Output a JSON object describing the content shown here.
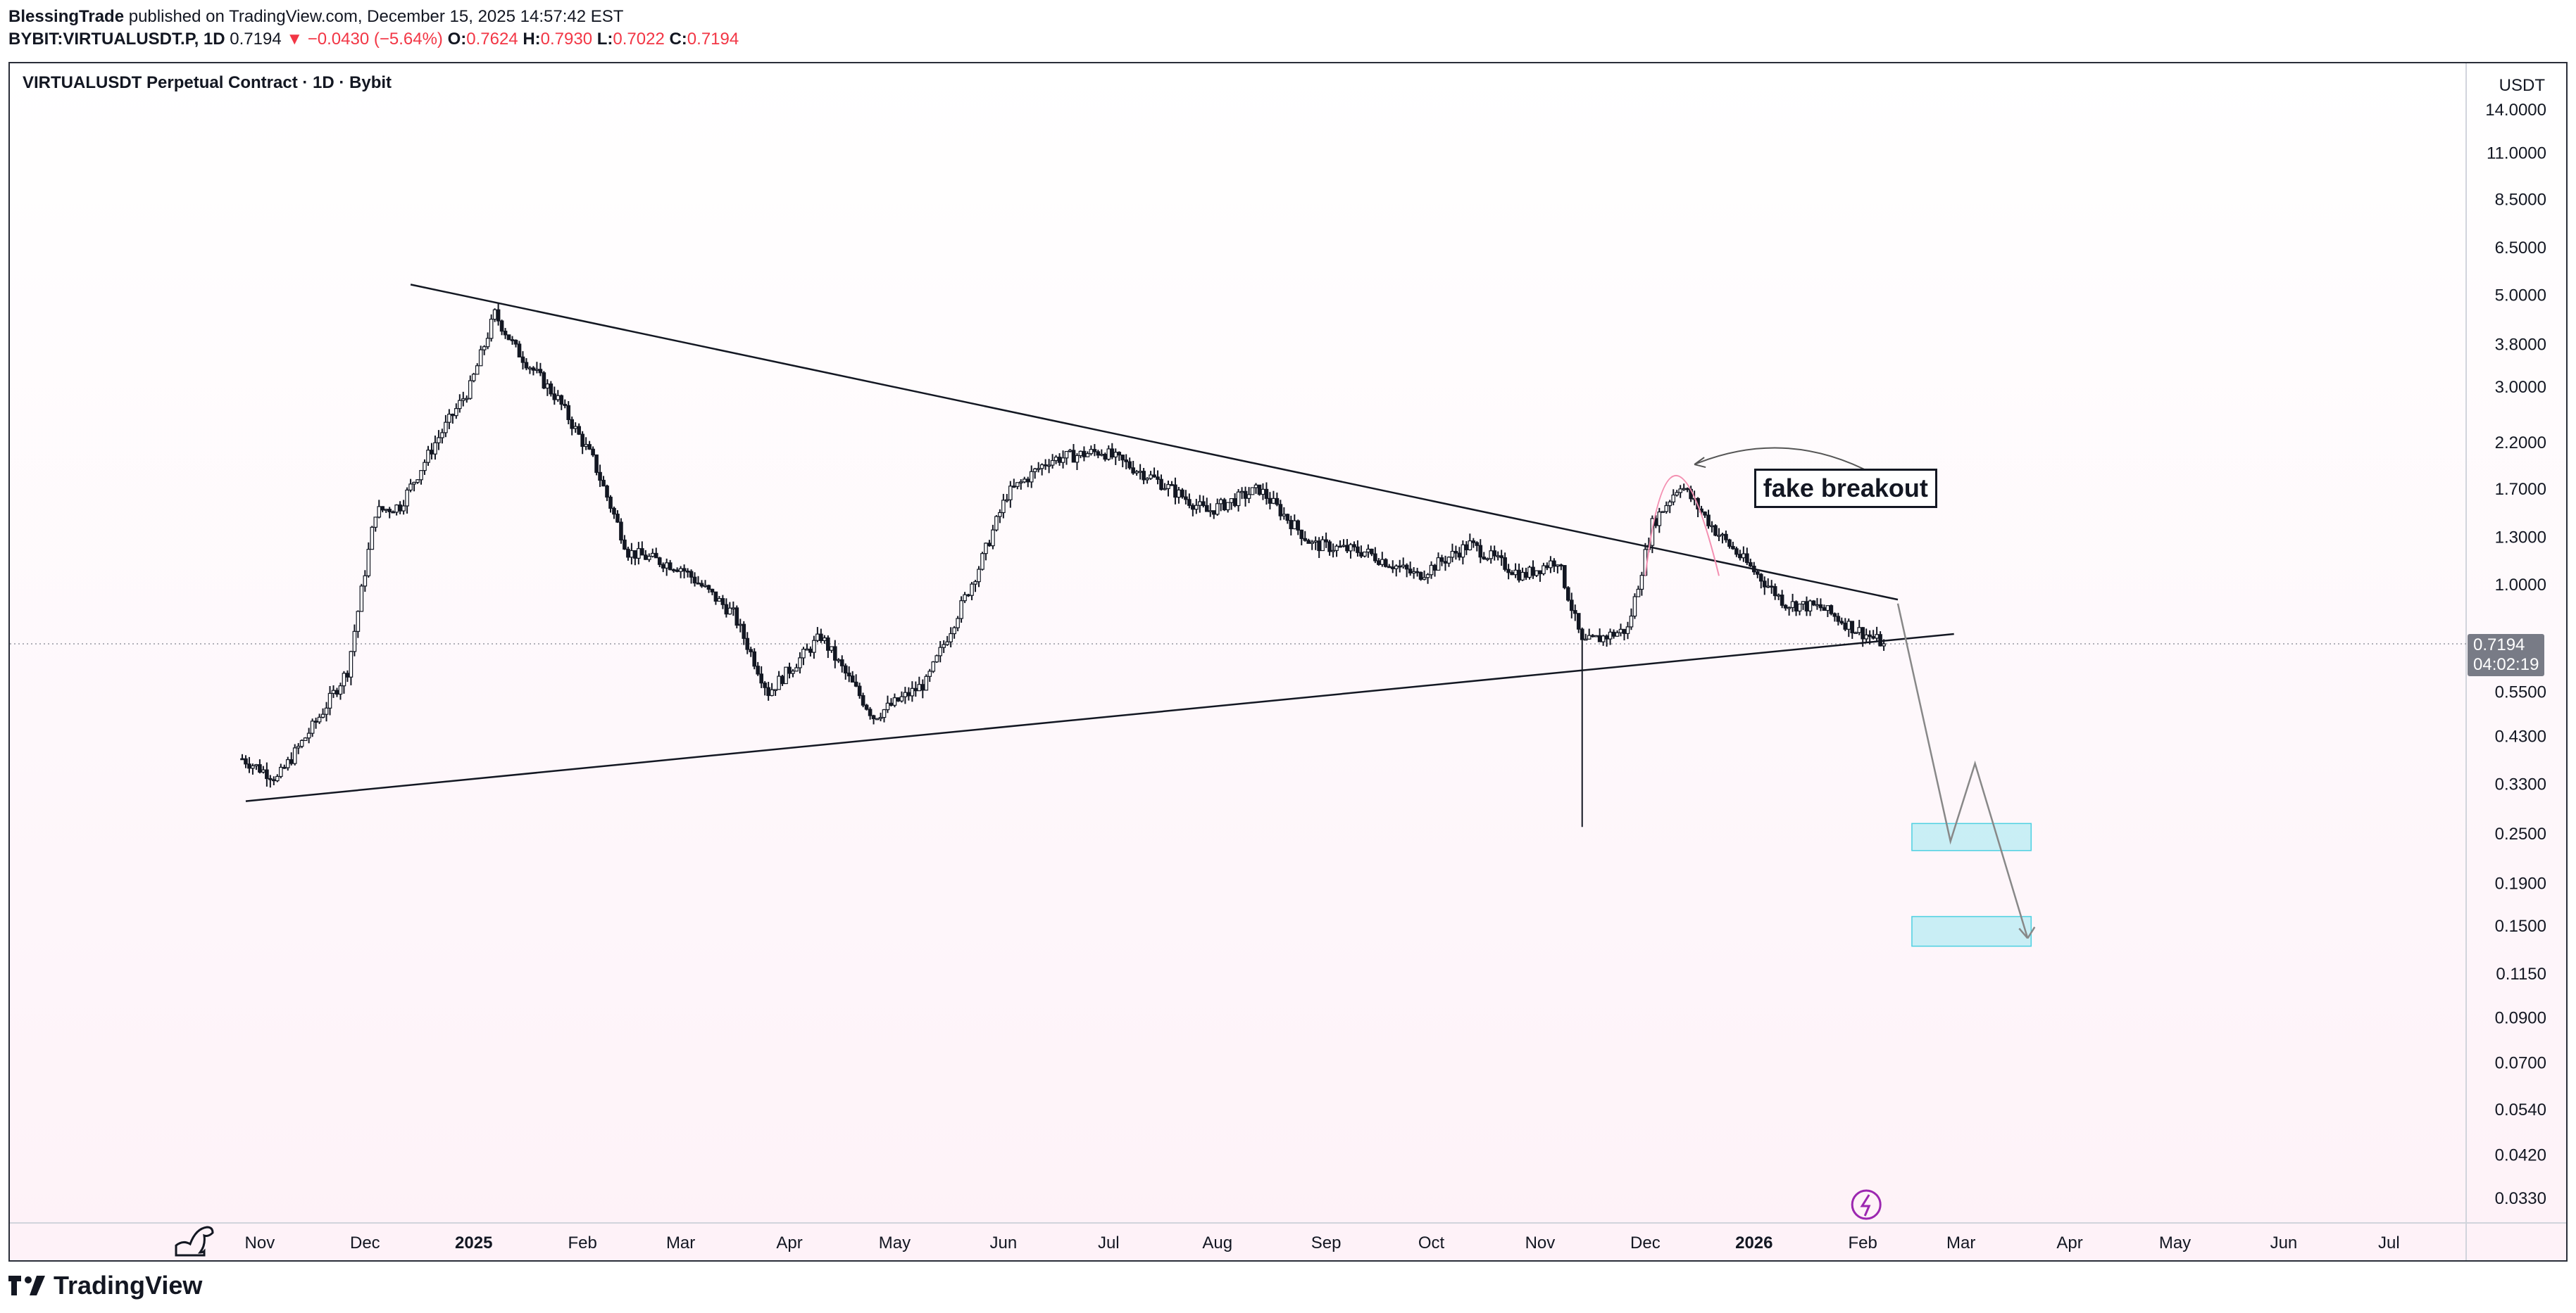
{
  "header": {
    "author": "BlessingTrade",
    "published_text": "published on TradingView.com, December 15, 2025 14:57:42 EST",
    "symbol": "BYBIT:VIRTUALUSDT.P, 1D",
    "last": "0.7194",
    "change": "▼ −0.0430 (−5.64%)",
    "o_label": "O:",
    "o_value": "0.7624",
    "h_label": "H:",
    "h_value": "0.7930",
    "l_label": "L:",
    "l_value": "0.7022",
    "c_label": "C:",
    "c_value": "0.7194"
  },
  "chart_title": "VIRTUALUSDT Perpetual Contract · 1D · Bybit",
  "price_unit": "USDT",
  "price_badge": {
    "price": "0.7194",
    "countdown": "04:02:19"
  },
  "annotation": "fake breakout",
  "footer": {
    "brand": "TradingView"
  },
  "colors": {
    "up": "#131722",
    "down": "#131722",
    "accent_red": "#f23645",
    "zone": "#b2ebf2",
    "zone_border": "#4dd0e1",
    "arc": "#f48fb1"
  },
  "chart_data": {
    "type": "candlestick",
    "title": "VIRTUALUSDT Perpetual Contract · 1D · Bybit",
    "y_scale": "log",
    "ylim": [
      0.028,
      15.5
    ],
    "y_ticks": [
      "14.0000",
      "11.0000",
      "8.5000",
      "6.5000",
      "5.0000",
      "3.8000",
      "3.0000",
      "2.2000",
      "1.7000",
      "1.3000",
      "1.0000",
      "0.5500",
      "0.4300",
      "0.3300",
      "0.2500",
      "0.1900",
      "0.1500",
      "0.1150",
      "0.0900",
      "0.0700",
      "0.0540",
      "0.0420",
      "0.0330"
    ],
    "x_ticks": [
      "Nov",
      "Dec",
      "2025",
      "Feb",
      "Mar",
      "Apr",
      "May",
      "Jun",
      "Jul",
      "Aug",
      "Sep",
      "Oct",
      "Nov",
      "Dec",
      "2026",
      "Feb",
      "Mar",
      "Apr",
      "May",
      "Jun",
      "Jul"
    ],
    "x_range_days": [
      0,
      630
    ],
    "series_keypoints": [
      {
        "d": 0,
        "p": 0.38
      },
      {
        "d": 10,
        "p": 0.34
      },
      {
        "d": 22,
        "p": 0.48
      },
      {
        "d": 30,
        "p": 0.62
      },
      {
        "d": 38,
        "p": 1.5
      },
      {
        "d": 45,
        "p": 1.55
      },
      {
        "d": 55,
        "p": 2.2
      },
      {
        "d": 65,
        "p": 3.0
      },
      {
        "d": 72,
        "p": 4.5
      },
      {
        "d": 78,
        "p": 3.7
      },
      {
        "d": 90,
        "p": 2.8
      },
      {
        "d": 100,
        "p": 2.0
      },
      {
        "d": 110,
        "p": 1.2
      },
      {
        "d": 125,
        "p": 1.1
      },
      {
        "d": 140,
        "p": 0.85
      },
      {
        "d": 150,
        "p": 0.55
      },
      {
        "d": 165,
        "p": 0.75
      },
      {
        "d": 180,
        "p": 0.48
      },
      {
        "d": 195,
        "p": 0.58
      },
      {
        "d": 210,
        "p": 1.1
      },
      {
        "d": 218,
        "p": 1.65
      },
      {
        "d": 230,
        "p": 2.0
      },
      {
        "d": 245,
        "p": 2.1
      },
      {
        "d": 260,
        "p": 1.8
      },
      {
        "d": 275,
        "p": 1.5
      },
      {
        "d": 290,
        "p": 1.7
      },
      {
        "d": 305,
        "p": 1.25
      },
      {
        "d": 320,
        "p": 1.2
      },
      {
        "d": 335,
        "p": 1.05
      },
      {
        "d": 350,
        "p": 1.25
      },
      {
        "d": 365,
        "p": 1.05
      },
      {
        "d": 375,
        "p": 1.15
      },
      {
        "d": 382,
        "p": 0.72
      },
      {
        "d": 395,
        "p": 0.78
      },
      {
        "d": 402,
        "p": 1.4
      },
      {
        "d": 410,
        "p": 1.75
      },
      {
        "d": 420,
        "p": 1.35
      },
      {
        "d": 430,
        "p": 1.1
      },
      {
        "d": 440,
        "p": 0.9
      },
      {
        "d": 450,
        "p": 0.88
      },
      {
        "d": 460,
        "p": 0.78
      },
      {
        "d": 468,
        "p": 0.72
      }
    ],
    "flash_crash_low": 0.26,
    "trendlines": [
      {
        "name": "resistance",
        "from": {
          "d": 48,
          "p": 5.3
        },
        "to": {
          "d": 472,
          "p": 0.92
        }
      },
      {
        "name": "support",
        "from": {
          "d": 1,
          "p": 0.3
        },
        "to": {
          "d": 488,
          "p": 0.76
        }
      }
    ],
    "projection_path": [
      {
        "d": 472,
        "p": 0.9
      },
      {
        "d": 487,
        "p": 0.24
      },
      {
        "d": 494,
        "p": 0.37
      },
      {
        "d": 509,
        "p": 0.14
      }
    ],
    "target_zones": [
      {
        "label": "zone-1",
        "d_from": 476,
        "d_to": 510,
        "p_low": 0.228,
        "p_high": 0.265
      },
      {
        "label": "zone-2",
        "d_from": 476,
        "d_to": 510,
        "p_low": 0.134,
        "p_high": 0.158
      }
    ],
    "last_price": 0.7194
  }
}
